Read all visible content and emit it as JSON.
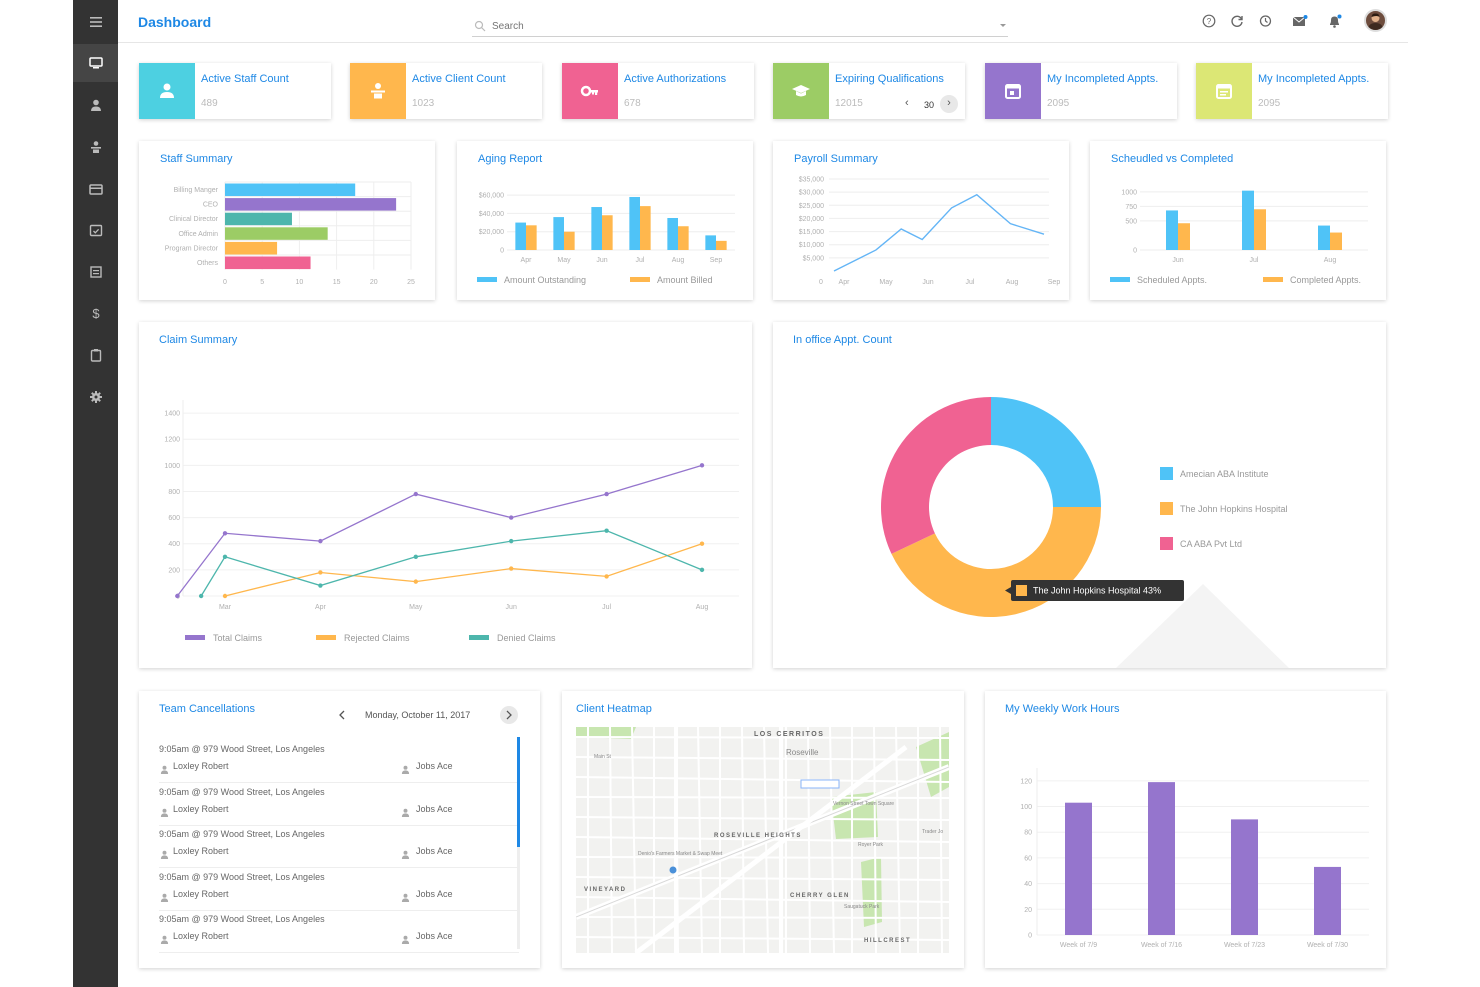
{
  "colors": {
    "blue": "#4fc3f7",
    "orange": "#ffb74d",
    "pink": "#f06292",
    "purple": "#9575cd",
    "teal": "#4db6ac",
    "green": "#9ccc65",
    "lime": "#dce775",
    "accent": "#1e88e5"
  },
  "header": {
    "title": "Dashboard",
    "search_placeholder": "Search"
  },
  "sidebar": {
    "items": [
      "menu-icon",
      "monitor-icon",
      "user-icon",
      "client-icon",
      "card-icon",
      "calendar-check-icon",
      "report-icon",
      "dollar-icon",
      "clipboard-icon",
      "gear-icon"
    ]
  },
  "stats": [
    {
      "label": "Active Staff Count",
      "value": "489",
      "color": "#4dd0e1",
      "icon": "user-icon"
    },
    {
      "label": "Active Client Count",
      "value": "1023",
      "color": "#ffb74d",
      "icon": "client-icon"
    },
    {
      "label": "Active Authorizations",
      "value": "678",
      "color": "#f06292",
      "icon": "key-icon"
    },
    {
      "label": "Expiring Qualifications",
      "value": "12015",
      "color": "#9ccc65",
      "icon": "graduation-cap-icon",
      "pager": "30"
    },
    {
      "label": "My Incompleted Appts.",
      "value": "2095",
      "color": "#9575cd",
      "icon": "calendar-icon"
    },
    {
      "label": "My Incompleted Appts.",
      "value": "2095",
      "color": "#dce775",
      "icon": "calendar-note-icon"
    }
  ],
  "staff_summary": {
    "title": "Staff Summary",
    "chart_data": {
      "type": "bar",
      "orientation": "horizontal",
      "categories": [
        "Billing Manger",
        "CEO",
        "Clinical Director",
        "Office Admin",
        "Program Director",
        "Others"
      ],
      "values": [
        17.5,
        23,
        9,
        13.8,
        7,
        11.5
      ],
      "colors": [
        "#4fc3f7",
        "#9575cd",
        "#4db6ac",
        "#9ccc65",
        "#ffb74d",
        "#f06292"
      ],
      "xlim": [
        0,
        25
      ],
      "xticks": [
        "0",
        "5",
        "10",
        "15",
        "20",
        "25"
      ]
    }
  },
  "aging_report": {
    "title": "Aging Report",
    "chart_data": {
      "type": "bar",
      "categories": [
        "Apr",
        "May",
        "Jun",
        "Jul",
        "Aug",
        "Sep"
      ],
      "series": [
        {
          "name": "Amount Outstanding",
          "values": [
            30000,
            36000,
            47000,
            58000,
            35000,
            16000
          ],
          "color": "#4fc3f7"
        },
        {
          "name": "Amount Billed",
          "values": [
            27000,
            20000,
            38000,
            48000,
            26000,
            10000
          ],
          "color": "#ffb74d"
        }
      ],
      "ylim": [
        0,
        70000
      ],
      "yticks": [
        "0",
        "$20,000",
        "$40,000",
        "$60,000"
      ]
    }
  },
  "payroll_summary": {
    "title": "Payroll Summary",
    "chart_data": {
      "type": "line",
      "categories": [
        "Apr",
        "May",
        "Jun",
        "Jul",
        "Aug",
        "Sep"
      ],
      "series": [
        {
          "values": [
            0,
            8000,
            16000,
            12000,
            24000,
            29000,
            18000,
            14000
          ],
          "x": [
            0,
            1,
            1.6,
            2.1,
            2.8,
            3.4,
            4.2,
            5
          ],
          "color": "#64b5f6"
        }
      ],
      "ylim": [
        0,
        35000
      ],
      "yticks": [
        "$5,000",
        "$10,000",
        "$15,000",
        "$20,000",
        "$25,000",
        "$30,000",
        "$35,000"
      ]
    }
  },
  "scheduled_vs_completed": {
    "title": "Scheudled vs Completed",
    "chart_data": {
      "type": "bar",
      "categories": [
        "Jun",
        "Jul",
        "Aug"
      ],
      "series": [
        {
          "name": "Scheduled Appts.",
          "values": [
            680,
            1020,
            420
          ],
          "color": "#4fc3f7"
        },
        {
          "name": "Completed Appts.",
          "values": [
            460,
            700,
            300
          ],
          "color": "#ffb74d"
        }
      ],
      "ylim": [
        0,
        1100
      ],
      "yticks": [
        "0",
        "500",
        "750",
        "1000"
      ]
    }
  },
  "claim_summary": {
    "title": "Claim Summary",
    "chart_data": {
      "type": "line",
      "categories": [
        "Mar",
        "Apr",
        "May",
        "Jun",
        "Jul",
        "Aug"
      ],
      "series": [
        {
          "name": "Total Claims",
          "x": [
            -0.5,
            0,
            1,
            2,
            3,
            4,
            5
          ],
          "values": [
            0,
            480,
            420,
            780,
            600,
            780,
            1000
          ],
          "color": "#9575cd"
        },
        {
          "name": "Rejected Claims",
          "x": [
            0,
            1,
            2,
            3,
            4,
            5
          ],
          "values": [
            0,
            180,
            110,
            210,
            150,
            400
          ],
          "color": "#ffb74d"
        },
        {
          "name": "Denied Claims",
          "x": [
            -0.25,
            0,
            1,
            2,
            3,
            4,
            5
          ],
          "values": [
            0,
            300,
            80,
            300,
            420,
            500,
            200
          ],
          "color": "#4db6ac"
        }
      ],
      "ylim": [
        0,
        1500
      ],
      "yticks": [
        "0",
        "200",
        "400",
        "600",
        "800",
        "1000",
        "1200",
        "1400"
      ]
    }
  },
  "office_appt": {
    "title": "In office Appt. Count",
    "tooltip": "The John Hopkins Hospital   43%",
    "chart_data": {
      "type": "pie",
      "labels": [
        "Amecian ABA Institute",
        "The John Hopkins Hospital",
        "CA ABA Pvt Ltd"
      ],
      "values": [
        25,
        43,
        32
      ],
      "colors": [
        "#4fc3f7",
        "#ffb74d",
        "#f06292"
      ]
    }
  },
  "team_cancellations": {
    "title": "Team Cancellations",
    "date": "Monday, October 11, 2017",
    "rows": [
      {
        "time": "9:05am @ 979 Wood Street, Los Angeles",
        "staff": "Loxley Robert",
        "client": "Jobs Ace"
      },
      {
        "time": "9:05am @ 979 Wood Street, Los Angeles",
        "staff": "Loxley Robert",
        "client": "Jobs Ace"
      },
      {
        "time": "9:05am @ 979 Wood Street, Los Angeles",
        "staff": "Loxley Robert",
        "client": "Jobs Ace"
      },
      {
        "time": "9:05am @ 979 Wood Street, Los Angeles",
        "staff": "Loxley Robert",
        "client": "Jobs Ace"
      },
      {
        "time": "9:05am @ 979 Wood Street, Los Angeles",
        "staff": "Loxley Robert",
        "client": "Jobs Ace"
      }
    ]
  },
  "client_heatmap": {
    "title": "Client Heatmap",
    "map_labels": [
      "LOS CERRITOS",
      "Roseville",
      "ROSEVILLE HEIGHTS",
      "VINEYARD",
      "CHERRY GLEN",
      "HILLCREST",
      "Vernon Street Town Square",
      "Denio's Farmers Market & Swap Meet",
      "Royer Park",
      "Saugatuck Park",
      "Main St",
      "Trader Jo"
    ]
  },
  "weekly_hours": {
    "title": "My Weekly Work Hours",
    "chart_data": {
      "type": "bar",
      "categories": [
        "Week of 7/9",
        "Week of 7/16",
        "Week of 7/23",
        "Week of 7/30"
      ],
      "values": [
        103,
        119,
        90,
        53
      ],
      "color": "#9575cd",
      "ylim": [
        0,
        130
      ],
      "yticks": [
        "0",
        "20",
        "40",
        "60",
        "80",
        "100",
        "120"
      ]
    }
  }
}
